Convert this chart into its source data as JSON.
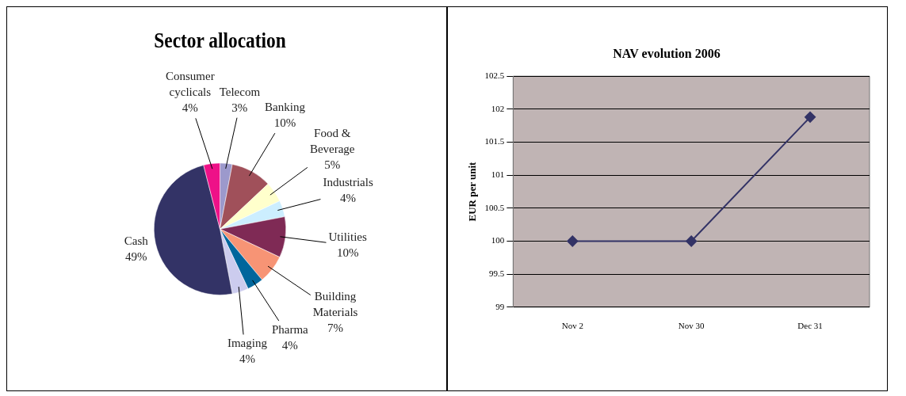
{
  "chart_data": [
    {
      "type": "pie",
      "title": "Sector allocation",
      "categories": [
        "Telecom",
        "Banking",
        "Food & Beverage",
        "Industrials",
        "Utilities",
        "Building Materials",
        "Pharma",
        "Imaging",
        "Cash",
        "Consumer cyclicals"
      ],
      "values": [
        3,
        10,
        5,
        4,
        10,
        7,
        4,
        4,
        49,
        4
      ],
      "colors": [
        "#9c99cc",
        "#a0505a",
        "#ffffcc",
        "#cceeff",
        "#7f2a55",
        "#f79475",
        "#00669c",
        "#ccccee",
        "#333366",
        "#ee1188"
      ],
      "value_labels": [
        "3%",
        "10%",
        "5%",
        "4%",
        "10%",
        "7%",
        "4%",
        "4%",
        "49%",
        "4%"
      ],
      "legend": false
    },
    {
      "type": "line",
      "title": "NAV evolution 2006",
      "ylabel": "EUR per unit",
      "categories": [
        "Nov 2",
        "Nov 30",
        "Dec 31"
      ],
      "series": [
        {
          "color": "#333366",
          "values": [
            100,
            100,
            101.88
          ]
        }
      ],
      "ylim": [
        99,
        102.5
      ],
      "yticks": [
        99,
        99.5,
        100,
        100.5,
        101,
        101.5,
        102,
        102.5
      ],
      "grid": "y",
      "marker": "diamond",
      "line_style": "solid",
      "legend": false
    }
  ]
}
